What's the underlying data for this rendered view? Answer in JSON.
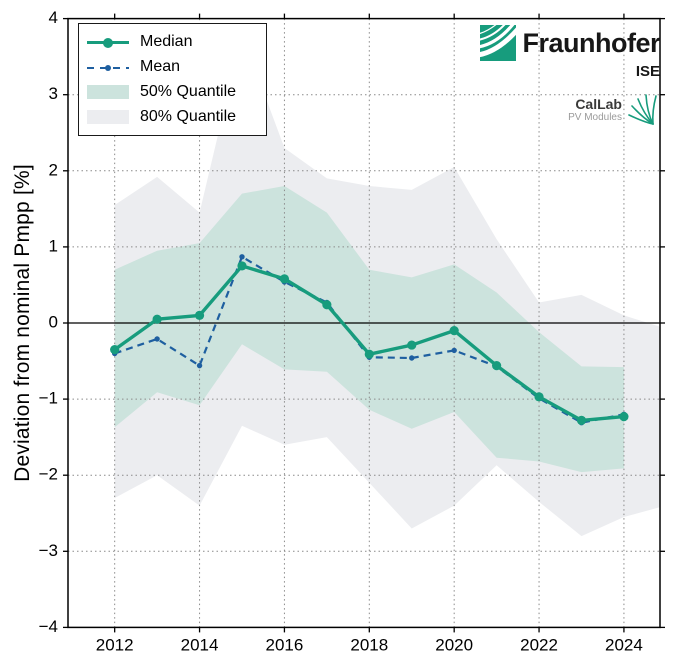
{
  "figure": {
    "y_axis_title": "Deviation from nominal Pmpp [%]"
  },
  "colors": {
    "median_teal": "#179c7d",
    "mean_blue": "#1e5fa0",
    "band50_teal": "#cce3dd",
    "band80_gray": "#ecedf0",
    "grid_gray": "#8a8a8a",
    "axis_black": "#000000"
  },
  "legend": {
    "items": [
      {
        "label": "Median"
      },
      {
        "label": "Mean"
      },
      {
        "label": "50% Quantile"
      },
      {
        "label": "80% Quantile"
      }
    ]
  },
  "branding": {
    "fraunhofer_name": "Fraunhofer",
    "fraunhofer_institute": "ISE",
    "callab_title": "CalLab",
    "callab_subtitle": "PV Modules"
  },
  "chart_data": {
    "type": "line",
    "title": "",
    "xlabel": "",
    "ylabel": "Deviation from nominal Pmpp [%]",
    "xlim": [
      2010.9,
      2024.85
    ],
    "ylim": [
      -4,
      4
    ],
    "grid": "dotted; horizontal at integer y, vertical at even years",
    "zero_line": true,
    "legend_position": "upper left",
    "x": [
      2012,
      2013,
      2014,
      2015,
      2016,
      2017,
      2018,
      2019,
      2020,
      2021,
      2022,
      2023,
      2024
    ],
    "x_ticks": [
      2012,
      2014,
      2016,
      2018,
      2020,
      2022,
      2024
    ],
    "x_tick_labels": [
      "2012",
      "2014",
      "2016",
      "2018",
      "2020",
      "2022",
      "2024"
    ],
    "y_ticks": [
      4,
      3,
      2,
      1,
      0,
      -1,
      -2,
      -3,
      -4
    ],
    "y_tick_labels": [
      "4",
      "3",
      "2",
      "1",
      "0",
      "−1",
      "−2",
      "−3",
      "−4"
    ],
    "y_grid": [
      3,
      2,
      1,
      -1,
      -2,
      -3
    ],
    "series": [
      {
        "name": "80% Quantile",
        "kind": "band",
        "upper": [
          1.55,
          1.92,
          1.45,
          3.8,
          2.3,
          1.9,
          1.8,
          1.75,
          2.05,
          1.1,
          0.27,
          0.37,
          0.1
        ],
        "lower": [
          -2.3,
          -2.0,
          -2.4,
          -1.35,
          -1.6,
          -1.5,
          -2.1,
          -2.7,
          -2.4,
          -1.87,
          -2.35,
          -2.8,
          -2.55
        ],
        "extend": {
          "x": 2024.85,
          "upper": -0.05,
          "lower": -2.42
        }
      },
      {
        "name": "50% Quantile",
        "kind": "band",
        "upper": [
          0.7,
          0.95,
          1.05,
          1.7,
          1.8,
          1.45,
          0.7,
          0.6,
          0.77,
          0.4,
          -0.12,
          -0.57,
          -0.58
        ],
        "lower": [
          -1.37,
          -0.91,
          -1.08,
          -0.28,
          -0.61,
          -0.64,
          -1.14,
          -1.39,
          -1.17,
          -1.77,
          -1.82,
          -1.96,
          -1.91
        ]
      },
      {
        "name": "Mean",
        "kind": "line",
        "style": "dashed",
        "values": [
          -0.4,
          -0.21,
          -0.56,
          0.87,
          0.54,
          0.27,
          -0.45,
          -0.46,
          -0.36,
          -0.57,
          -0.99,
          -1.31,
          -1.2
        ]
      },
      {
        "name": "Median",
        "kind": "line",
        "style": "solid",
        "values": [
          -0.35,
          0.05,
          0.1,
          0.75,
          0.58,
          0.24,
          -0.41,
          -0.29,
          -0.1,
          -0.56,
          -0.97,
          -1.28,
          -1.23
        ]
      }
    ]
  }
}
